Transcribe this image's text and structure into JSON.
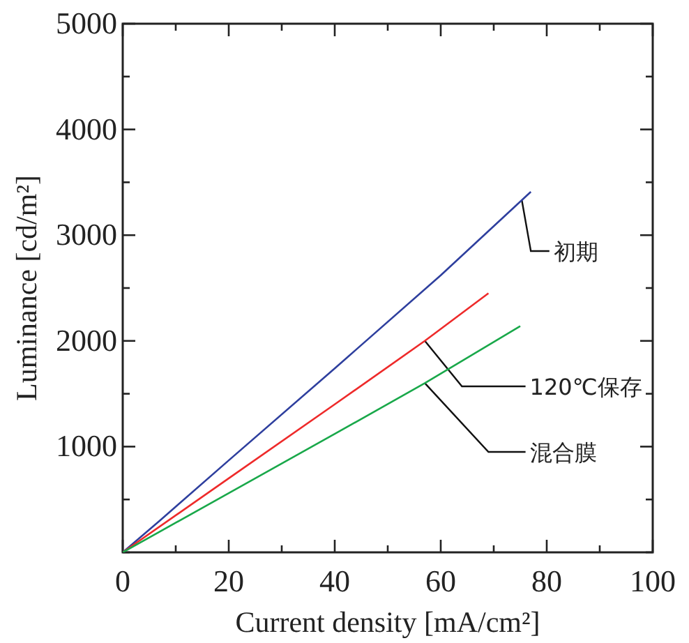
{
  "chart_data": {
    "type": "line",
    "xlabel": "Current density [mA/cm²]",
    "ylabel": "Luminance [cd/m²]",
    "xlim": [
      0,
      100
    ],
    "ylim": [
      0,
      5000
    ],
    "xticks": [
      0,
      {
        "value": 10,
        "label": null
      },
      20,
      {
        "value": 30,
        "label": null
      },
      40,
      {
        "value": 50,
        "label": null
      },
      60,
      {
        "value": 70,
        "label": null
      },
      80,
      {
        "value": 90,
        "label": null
      },
      100
    ],
    "yticks": [
      {
        "value": 0,
        "label": null
      },
      {
        "value": 500,
        "label": null
      },
      1000,
      {
        "value": 1500,
        "label": null
      },
      2000,
      {
        "value": 2500,
        "label": null
      },
      3000,
      {
        "value": 3500,
        "label": null
      },
      4000,
      {
        "value": 4500,
        "label": null
      },
      5000
    ],
    "marker": "none",
    "line_style": "solid",
    "series": [
      {
        "name": "初期",
        "color": "#2e3f9e",
        "x": [
          0,
          7,
          20,
          40,
          60,
          77
        ],
        "values": [
          0,
          300,
          870,
          1740,
          2620,
          3410
        ]
      },
      {
        "name": "120℃保存",
        "color": "#ee2a2a",
        "x": [
          0,
          20,
          40,
          57,
          69
        ],
        "values": [
          0,
          700,
          1400,
          2000,
          2450
        ]
      },
      {
        "name": "混合膜",
        "color": "#19a84a",
        "x": [
          0,
          20,
          40,
          57,
          75
        ],
        "values": [
          0,
          560,
          1120,
          1600,
          2140
        ]
      }
    ]
  }
}
